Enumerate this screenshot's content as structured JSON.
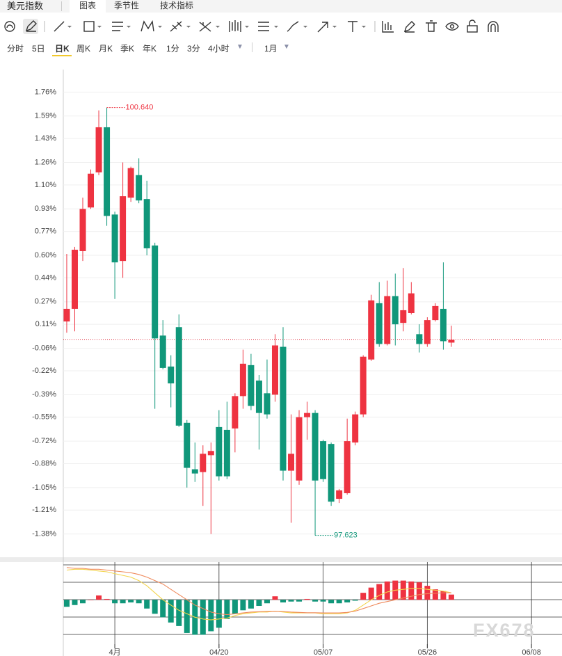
{
  "header": {
    "title": "美元指数",
    "tabs": [
      "图表",
      "季节性",
      "技术指标"
    ]
  },
  "periods": [
    "分时",
    "5日",
    "日K",
    "周K",
    "月K",
    "季K",
    "年K",
    "1分",
    "3分",
    "4小时"
  ],
  "active_period": "日K",
  "range": "1月",
  "watermark": "FX678",
  "chart_data": {
    "type": "candlestick",
    "categories": [
      null,
      null,
      null,
      null,
      null,
      null,
      "4月",
      null,
      null,
      null,
      null,
      null,
      null,
      null,
      null,
      null,
      null,
      null,
      null,
      "04/20",
      null,
      null,
      null,
      null,
      null,
      null,
      null,
      null,
      null,
      null,
      null,
      null,
      "05/07",
      null,
      null,
      null,
      null,
      null,
      null,
      null,
      null,
      null,
      null,
      null,
      null,
      "05/26",
      null,
      null,
      null,
      null,
      null,
      null,
      null,
      null,
      null,
      null,
      null,
      null,
      "06/08"
    ],
    "open": [
      0.13,
      0.22,
      0.63,
      0.94,
      1.19,
      1.51,
      0.89,
      0.56,
      1.01,
      1.17,
      1.0,
      0.67,
      0.03,
      -0.19,
      0.09,
      -0.59,
      -0.92,
      -0.94,
      -0.82,
      -0.62,
      -0.64,
      -0.63,
      -0.4,
      -0.18,
      -0.29,
      -0.38,
      -0.39,
      -0.05,
      -0.93,
      -1.0,
      -0.55,
      -0.52,
      -0.72,
      -0.74,
      -1.13,
      -1.09,
      -0.73,
      -0.53,
      -0.14,
      0.26,
      -0.03,
      0.31,
      0.12,
      0.19,
      0.04,
      -0.03,
      0.14,
      0.22,
      -0.02,
      null,
      null,
      null,
      null,
      null,
      null,
      null,
      null,
      null,
      null
    ],
    "high": [
      0.61,
      0.66,
      1.01,
      1.21,
      1.63,
      1.65,
      0.91,
      1.26,
      1.23,
      1.29,
      1.13,
      0.69,
      0.14,
      -0.11,
      0.18,
      -0.57,
      -0.73,
      -0.75,
      -0.73,
      -0.5,
      -0.44,
      -0.38,
      -0.07,
      -0.1,
      -0.25,
      -0.14,
      0.04,
      0.09,
      -0.53,
      -0.5,
      -0.44,
      -0.5,
      -0.71,
      -0.73,
      -1.06,
      -0.56,
      -0.51,
      -0.11,
      0.32,
      0.41,
      0.42,
      0.47,
      0.51,
      0.41,
      0.11,
      0.16,
      0.26,
      0.55,
      0.1,
      null,
      null,
      null,
      null,
      null,
      null,
      null,
      null,
      null,
      null
    ],
    "low": [
      0.05,
      0.06,
      0.56,
      0.93,
      1.17,
      0.81,
      0.29,
      0.44,
      0.98,
      0.97,
      0.6,
      -0.49,
      -0.21,
      -0.48,
      -0.62,
      -1.05,
      -1.01,
      -1.18,
      -1.38,
      -1.0,
      -0.99,
      -0.8,
      -0.49,
      -0.5,
      -0.78,
      -0.56,
      -0.44,
      -1.0,
      -1.3,
      -1.03,
      -0.71,
      -1.39,
      -1.01,
      -1.18,
      -1.16,
      -1.1,
      -0.75,
      -0.55,
      -0.15,
      -0.05,
      -0.04,
      -0.04,
      0.06,
      0.18,
      -0.09,
      -0.05,
      0.13,
      -0.07,
      -0.05,
      null,
      null,
      null,
      null,
      null,
      null,
      null,
      null,
      null,
      null
    ],
    "close": [
      0.22,
      0.64,
      0.93,
      1.18,
      1.51,
      0.88,
      0.55,
      1.02,
      1.22,
      0.99,
      0.65,
      0.01,
      -0.2,
      -0.31,
      -0.61,
      -0.91,
      -0.95,
      -0.81,
      -0.79,
      -0.97,
      -0.97,
      -0.4,
      -0.17,
      -0.47,
      -0.52,
      -0.53,
      -0.04,
      -0.93,
      -0.81,
      -0.55,
      -0.52,
      -1.0,
      -0.99,
      -1.15,
      -1.07,
      -0.72,
      -0.53,
      -0.12,
      0.28,
      -0.03,
      0.31,
      0.11,
      0.21,
      0.33,
      -0.03,
      0.14,
      0.24,
      -0.01,
      0.0,
      null,
      null,
      null,
      null,
      null,
      null,
      null,
      null,
      null,
      null
    ],
    "up_color": "#ee3341",
    "down_color": "#10977a",
    "ylim": [
      -1.54,
      1.92
    ],
    "yticks": [
      {
        "value": 1.76,
        "label": "1.76%"
      },
      {
        "value": 1.59,
        "label": "1.59%"
      },
      {
        "value": 1.43,
        "label": "1.43%"
      },
      {
        "value": 1.26,
        "label": "1.26%"
      },
      {
        "value": 1.1,
        "label": "1.10%"
      },
      {
        "value": 0.93,
        "label": "0.93%"
      },
      {
        "value": 0.77,
        "label": "0.77%"
      },
      {
        "value": 0.6,
        "label": "0.60%"
      },
      {
        "value": 0.44,
        "label": "0.44%"
      },
      {
        "value": 0.27,
        "label": "0.27%"
      },
      {
        "value": 0.11,
        "label": "0.11%"
      },
      {
        "value": -0.06,
        "label": "-0.06%"
      },
      {
        "value": -0.22,
        "label": "-0.22%"
      },
      {
        "value": -0.39,
        "label": "-0.39%"
      },
      {
        "value": -0.55,
        "label": "-0.55%"
      },
      {
        "value": -0.72,
        "label": "-0.72%"
      },
      {
        "value": -0.88,
        "label": "-0.88%"
      },
      {
        "value": -1.05,
        "label": "-1.05%"
      },
      {
        "value": -1.21,
        "label": "-1.21%"
      },
      {
        "value": -1.38,
        "label": "-1.38%"
      }
    ],
    "grid": true,
    "annotations": [
      "100.640",
      "97.623"
    ],
    "indicator": {
      "type": "macd",
      "ylim": [
        -2.5,
        2
      ],
      "histogram": [
        -0.4,
        -0.3,
        -0.2,
        0,
        0.25,
        0.05,
        -0.2,
        -0.2,
        -0.15,
        -0.2,
        -0.5,
        -0.8,
        -1.0,
        -1.3,
        -1.5,
        -1.9,
        -2.0,
        -2.0,
        -1.8,
        -1.6,
        -1.1,
        -0.8,
        -0.6,
        -0.5,
        -0.35,
        -0.2,
        0.2,
        -0.15,
        -0.1,
        -0.1,
        0.05,
        -0.1,
        -0.1,
        -0.2,
        -0.2,
        -0.15,
        -0.05,
        0.4,
        0.7,
        0.9,
        1.05,
        1.1,
        1.1,
        1.05,
        1.0,
        0.8,
        0.6,
        0.5,
        0.3,
        null,
        null,
        null,
        null,
        null,
        null,
        null,
        null,
        null,
        null
      ],
      "series": [
        {
          "color": "#f3d44c",
          "values": [
            1.7,
            1.75,
            1.75,
            1.7,
            1.65,
            1.6,
            1.5,
            1.4,
            1.3,
            1.1,
            0.8,
            0.4,
            0,
            -0.3,
            -0.6,
            -0.8,
            -1.0,
            -1.1,
            -1.15,
            -1.1,
            -1.05,
            -0.9,
            -0.8,
            -0.75,
            -0.7,
            -0.7,
            -0.65,
            -0.7,
            -0.75,
            -0.75,
            -0.75,
            -0.75,
            -0.8,
            -0.8,
            -0.8,
            -0.75,
            -0.6,
            -0.3,
            0,
            0.25,
            0.45,
            0.55,
            0.6,
            0.65,
            0.65,
            0.6,
            0.55,
            0.5,
            0.4,
            null,
            null,
            null,
            null,
            null,
            null,
            null,
            null,
            null,
            null
          ]
        },
        {
          "color": "#ef8a5c",
          "values": [
            1.85,
            1.8,
            1.8,
            1.75,
            1.75,
            1.7,
            1.65,
            1.6,
            1.55,
            1.45,
            1.3,
            1.1,
            0.9,
            0.6,
            0.3,
            0,
            -0.3,
            -0.5,
            -0.7,
            -0.8,
            -0.85,
            -0.8,
            -0.75,
            -0.7,
            -0.68,
            -0.66,
            -0.66,
            -0.67,
            -0.7,
            -0.72,
            -0.74,
            -0.74,
            -0.75,
            -0.75,
            -0.75,
            -0.72,
            -0.65,
            -0.5,
            -0.35,
            -0.2,
            -0.1,
            0,
            0.1,
            0.2,
            0.3,
            0.35,
            0.38,
            0.4,
            0.4,
            null,
            null,
            null,
            null,
            null,
            null,
            null,
            null,
            null,
            null
          ]
        }
      ]
    }
  }
}
